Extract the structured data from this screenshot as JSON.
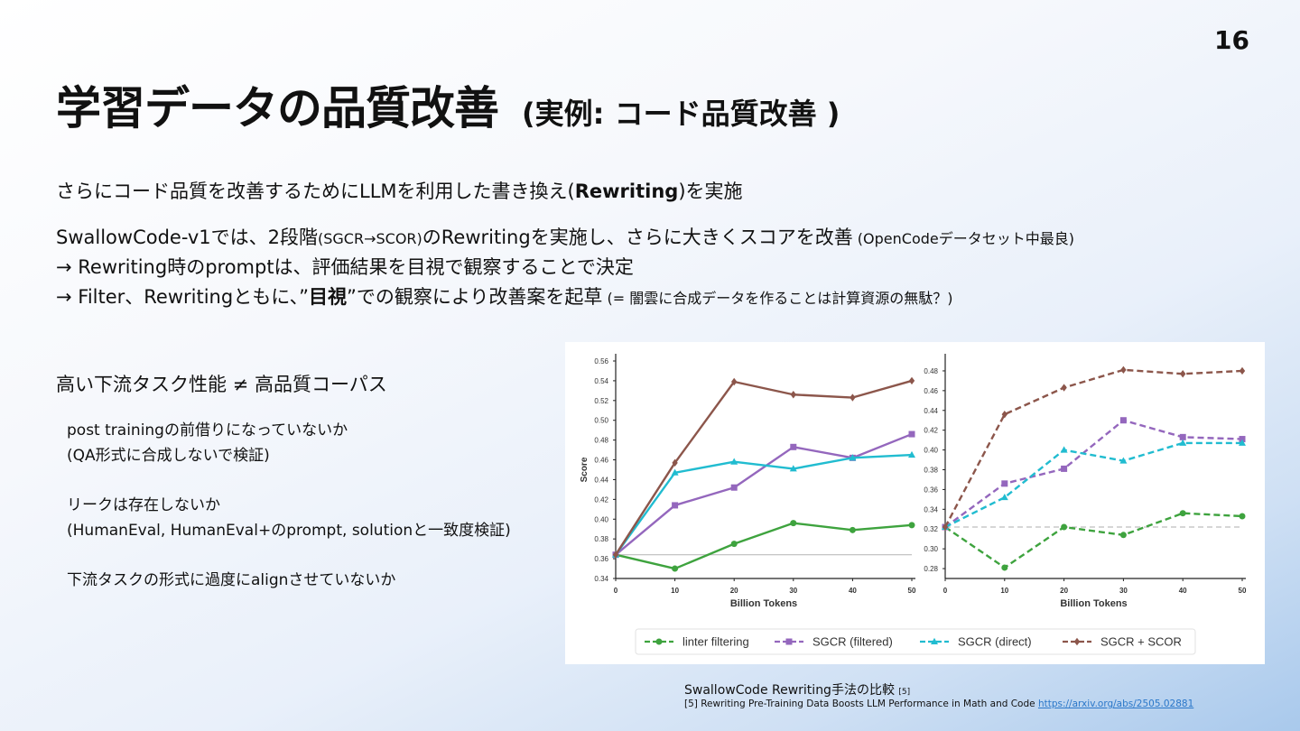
{
  "page_number": "16",
  "title": {
    "main": "学習データの品質改善",
    "sub": "(実例: コード品質改善 )"
  },
  "lines": {
    "l1_a": "さらにコード品質を改善するためにLLMを利用した書き換え(",
    "l1_b": "Rewriting",
    "l1_c": ")を実施",
    "l2_a": "SwallowCode-v1では、2段階",
    "l2_b": "(SGCR→SCOR)",
    "l2_c": "のRewritingを実施し、さらに大きくスコアを改善",
    "l2_d": " (OpenCodeデータセット中最良)",
    "l3": "→ Rewriting時のpromptは、評価結果を目視で観察することで決定",
    "l4_a": "→ Filter、Rewritingともに、”",
    "l4_b": "目視",
    "l4_c": "”での観察により改善案を起草",
    "l4_d": "  (= 闇雲に合成データを作ることは計算資源の無駄？)"
  },
  "subheading": "高い下流タスク性能 ≠ 高品質コーパス",
  "bullets": {
    "b1": "post trainingの前借りになっていないか",
    "b2": "(QA形式に合成しないで検証)",
    "b3": "リークは存在しないか",
    "b4": "(HumanEval, HumanEval+のprompt, solutionと一致度検証)",
    "b5": "下流タスクの形式に過度にalignさせていないか"
  },
  "caption": {
    "text": "SwallowCode Rewriting手法の比較",
    "ref": "[5]"
  },
  "reference": {
    "text": "[5] Rewriting Pre-Training Data Boosts LLM Performance in Math and Code ",
    "link": "https://arxiv.org/abs/2505.02881"
  },
  "chart_data": [
    {
      "type": "line",
      "x": [
        0,
        10,
        20,
        30,
        40,
        50
      ],
      "xlabel": "Billion Tokens",
      "ylabel": "Score",
      "ylim": [
        0.34,
        0.56
      ],
      "yticks": [
        "0.34",
        "0.36",
        "0.38",
        "0.40",
        "0.42",
        "0.44",
        "0.46",
        "0.48",
        "0.50",
        "0.52",
        "0.54",
        "0.56"
      ],
      "xticks": [
        "0",
        "10",
        "20",
        "30",
        "40",
        "50"
      ],
      "reference_line": 0.364,
      "series": [
        {
          "name": "linter filtering",
          "color": "#3ea33e",
          "marker": "circle",
          "values": [
            0.364,
            0.35,
            0.375,
            0.396,
            0.389,
            0.394
          ]
        },
        {
          "name": "SGCR (filtered)",
          "color": "#9467bd",
          "marker": "square",
          "values": [
            0.364,
            0.414,
            0.432,
            0.473,
            0.462,
            0.486
          ]
        },
        {
          "name": "SGCR (direct)",
          "color": "#21bcd0",
          "marker": "triangle",
          "values": [
            0.364,
            0.447,
            0.458,
            0.451,
            0.462,
            0.465
          ]
        },
        {
          "name": "SGCR + SCOR",
          "color": "#8c564b",
          "marker": "diamond",
          "values": [
            0.364,
            0.457,
            0.539,
            0.526,
            0.523,
            0.54
          ]
        }
      ]
    },
    {
      "type": "line",
      "x": [
        0,
        10,
        20,
        30,
        40,
        50
      ],
      "xlabel": "Billion Tokens",
      "ylabel": "",
      "ylim": [
        0.27,
        0.49
      ],
      "yticks": [
        "0.28",
        "0.30",
        "0.32",
        "0.34",
        "0.36",
        "0.38",
        "0.40",
        "0.42",
        "0.44",
        "0.46",
        "0.48"
      ],
      "xticks": [
        "0",
        "10",
        "20",
        "30",
        "40",
        "50"
      ],
      "reference_line": 0.322,
      "series": [
        {
          "name": "linter filtering",
          "color": "#3ea33e",
          "marker": "circle",
          "values": [
            0.322,
            0.281,
            0.322,
            0.314,
            0.336,
            0.333
          ]
        },
        {
          "name": "SGCR (filtered)",
          "color": "#9467bd",
          "marker": "square",
          "values": [
            0.322,
            0.366,
            0.381,
            0.43,
            0.413,
            0.411
          ]
        },
        {
          "name": "SGCR (direct)",
          "color": "#21bcd0",
          "marker": "triangle",
          "values": [
            0.322,
            0.352,
            0.4,
            0.389,
            0.407,
            0.407
          ]
        },
        {
          "name": "SGCR + SCOR",
          "color": "#8c564b",
          "marker": "diamond",
          "values": [
            0.322,
            0.436,
            0.463,
            0.481,
            0.477,
            0.48
          ]
        }
      ]
    }
  ]
}
